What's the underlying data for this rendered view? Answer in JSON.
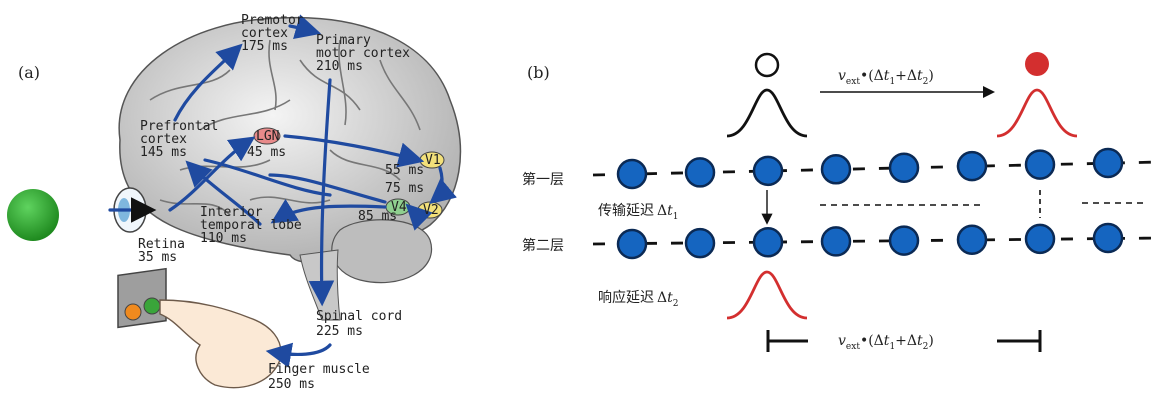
{
  "colors": {
    "accent_blue": "#1565c0",
    "arrow_blue": "#1f4aa0",
    "red": "#d32f2f",
    "stimulus_green": "#2e9e2e",
    "lgn_pink": "#e88a8a",
    "v1_yellow": "#f2e07a",
    "v4_green": "#8fcf8f"
  },
  "panel_a": {
    "label": "(a)",
    "brain_regions": {
      "premotor": {
        "name": "Premotor\ncortex",
        "time": "175 ms"
      },
      "primary_motor": {
        "name": "Primary\nmotor cortex",
        "time": "210 ms"
      },
      "prefrontal": {
        "name": "Prefrontal\ncortex",
        "time": "145 ms"
      },
      "lgn": {
        "name": "LGN",
        "time": "45 ms"
      },
      "v1": {
        "name": "V1",
        "time": "55 ms"
      },
      "v2": {
        "name": "V2",
        "time": "75 ms"
      },
      "v4": {
        "name": "V4",
        "time": "85 ms"
      },
      "it": {
        "name": "Interior\ntemporal lobe",
        "time": "110 ms"
      },
      "retina": {
        "name": "Retina",
        "time": "35 ms"
      },
      "spinal": {
        "name": "Spinal cord",
        "time": "225 ms"
      },
      "finger": {
        "name": "Finger muscle",
        "time": "250 ms"
      }
    }
  },
  "panel_b": {
    "label": "(b)",
    "layer1": "第一层",
    "layer2": "第二层",
    "transmission_delay": "传输延迟",
    "response_delay": "响应延迟",
    "delta": "Δ",
    "t": "t",
    "sub1": "1",
    "sub2": "2",
    "v": "v",
    "ext": "ext",
    "formula_mid": "•(Δ",
    "plus": "+Δ",
    "close": ")",
    "neurons_per_layer": 8
  }
}
